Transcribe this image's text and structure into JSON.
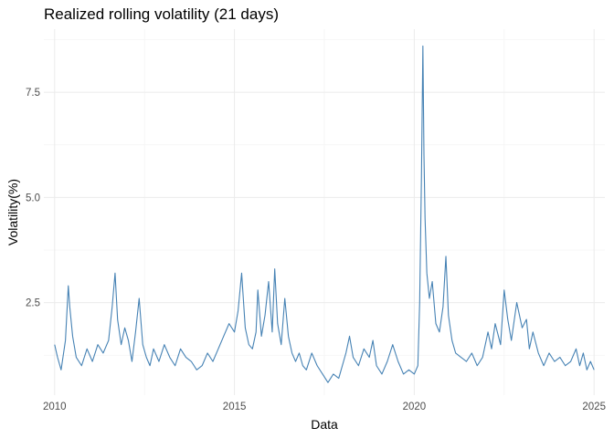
{
  "chart_data": {
    "type": "line",
    "title": "Realized rolling volatility (21 days)",
    "xlabel": "Data",
    "ylabel": "Volatility(%)",
    "xlim": [
      2009.7,
      2025.3
    ],
    "ylim": [
      0.3,
      9.0
    ],
    "x_ticks": [
      2010,
      2015,
      2020,
      2025
    ],
    "x_tick_labels": [
      "2010",
      "2015",
      "2020",
      "2025"
    ],
    "y_ticks": [
      2.5,
      5.0,
      7.5
    ],
    "y_tick_labels": [
      "2.5",
      "5.0",
      "7.5"
    ],
    "grid": true,
    "legend": "none",
    "line_color": "#4682b4",
    "series": [
      {
        "x": [
          2010.0,
          2010.08,
          2010.18,
          2010.3,
          2010.38,
          2010.42,
          2010.5,
          2010.6,
          2010.75,
          2010.9,
          2011.05,
          2011.2,
          2011.35,
          2011.5,
          2011.6,
          2011.68,
          2011.75,
          2011.85,
          2011.95,
          2012.05,
          2012.15,
          2012.25,
          2012.35,
          2012.45,
          2012.55,
          2012.65,
          2012.75,
          2012.9,
          2013.05,
          2013.2,
          2013.35,
          2013.5,
          2013.65,
          2013.8,
          2013.95,
          2014.1,
          2014.25,
          2014.4,
          2014.55,
          2014.7,
          2014.85,
          2015.0,
          2015.1,
          2015.2,
          2015.3,
          2015.4,
          2015.5,
          2015.6,
          2015.65,
          2015.75,
          2015.85,
          2015.95,
          2016.05,
          2016.12,
          2016.2,
          2016.3,
          2016.4,
          2016.5,
          2016.6,
          2016.7,
          2016.8,
          2016.9,
          2017.0,
          2017.15,
          2017.3,
          2017.45,
          2017.6,
          2017.75,
          2017.9,
          2018.0,
          2018.1,
          2018.2,
          2018.3,
          2018.45,
          2018.6,
          2018.75,
          2018.85,
          2018.95,
          2019.1,
          2019.25,
          2019.4,
          2019.55,
          2019.7,
          2019.85,
          2020.0,
          2020.1,
          2020.15,
          2020.2,
          2020.24,
          2020.27,
          2020.3,
          2020.35,
          2020.42,
          2020.5,
          2020.6,
          2020.7,
          2020.8,
          2020.88,
          2020.95,
          2021.05,
          2021.15,
          2021.3,
          2021.45,
          2021.6,
          2021.75,
          2021.9,
          2022.05,
          2022.15,
          2022.25,
          2022.4,
          2022.5,
          2022.6,
          2022.7,
          2022.85,
          2023.0,
          2023.12,
          2023.2,
          2023.3,
          2023.45,
          2023.6,
          2023.75,
          2023.9,
          2024.05,
          2024.2,
          2024.35,
          2024.5,
          2024.6,
          2024.7,
          2024.8,
          2024.9,
          2025.0
        ],
        "y": [
          1.5,
          1.2,
          0.9,
          1.6,
          2.9,
          2.4,
          1.7,
          1.2,
          1.0,
          1.4,
          1.1,
          1.5,
          1.3,
          1.6,
          2.4,
          3.2,
          2.1,
          1.5,
          1.9,
          1.6,
          1.1,
          1.8,
          2.6,
          1.5,
          1.2,
          1.0,
          1.4,
          1.1,
          1.5,
          1.2,
          1.0,
          1.4,
          1.2,
          1.1,
          0.9,
          1.0,
          1.3,
          1.1,
          1.4,
          1.7,
          2.0,
          1.8,
          2.3,
          3.2,
          1.9,
          1.5,
          1.4,
          1.8,
          2.8,
          1.7,
          2.2,
          3.0,
          1.8,
          3.3,
          2.0,
          1.5,
          2.6,
          1.7,
          1.3,
          1.1,
          1.3,
          1.0,
          0.9,
          1.3,
          1.0,
          0.8,
          0.6,
          0.8,
          0.7,
          1.0,
          1.3,
          1.7,
          1.2,
          1.0,
          1.4,
          1.2,
          1.6,
          1.0,
          0.8,
          1.1,
          1.5,
          1.1,
          0.8,
          0.9,
          0.8,
          1.0,
          2.5,
          5.5,
          8.6,
          6.0,
          4.5,
          3.2,
          2.6,
          3.0,
          2.0,
          1.8,
          2.4,
          3.6,
          2.2,
          1.6,
          1.3,
          1.2,
          1.1,
          1.3,
          1.0,
          1.2,
          1.8,
          1.4,
          2.0,
          1.5,
          2.8,
          2.1,
          1.6,
          2.5,
          1.9,
          2.1,
          1.4,
          1.8,
          1.3,
          1.0,
          1.3,
          1.1,
          1.2,
          1.0,
          1.1,
          1.4,
          1.0,
          1.3,
          0.9,
          1.1,
          0.9
        ]
      }
    ]
  }
}
